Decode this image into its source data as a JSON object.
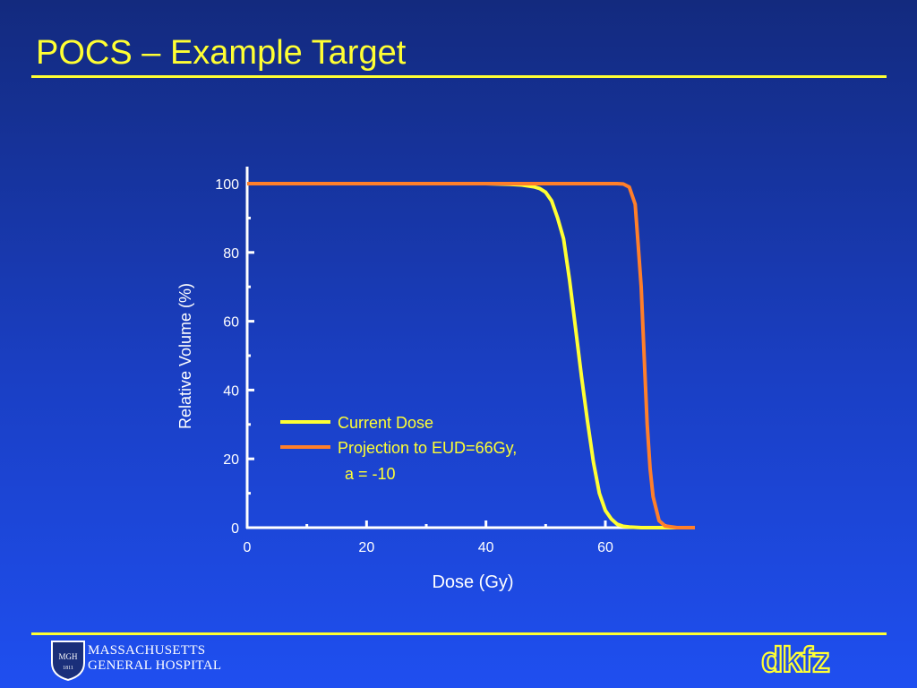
{
  "slide": {
    "title": "POCS – Example Target"
  },
  "footer": {
    "hospital_line1": "MASSACHUSETTS",
    "hospital_line2": "GENERAL HOSPITAL",
    "seal_text": "MGH",
    "seal_year": "1811",
    "partner_logo_text": "dkfz"
  },
  "colors": {
    "background": "#1a3fc4",
    "accent": "#ffff33",
    "series_current": "#ffff33",
    "series_projection": "#ff7f2a",
    "axis": "#ffffff"
  },
  "chart_data": {
    "type": "line",
    "title": "",
    "xlabel": "Dose (Gy)",
    "ylabel": "Relative Volume (%)",
    "xlim": [
      0,
      75
    ],
    "ylim": [
      0,
      100
    ],
    "xticks": [
      0,
      20,
      40,
      60
    ],
    "yticks": [
      0,
      20,
      40,
      60,
      80,
      100
    ],
    "grid": false,
    "legend": "center",
    "series": [
      {
        "name": "Current Dose",
        "color": "#ffff33",
        "x": [
          0,
          40,
          44,
          46,
          48,
          49,
          50,
          51,
          52,
          53,
          54,
          55,
          56,
          57,
          58,
          59,
          60,
          61,
          62,
          63,
          64,
          66,
          70,
          75
        ],
        "y": [
          100,
          100,
          99.8,
          99.6,
          99.1,
          98.6,
          97.5,
          95,
          90,
          84,
          72,
          58,
          44,
          31,
          19,
          10,
          5,
          2.5,
          1,
          0.4,
          0.2,
          0,
          0,
          0
        ]
      },
      {
        "name": "Projection to EUD=66Gy,",
        "legend_line2": "a = -10",
        "color": "#ff7f2a",
        "x": [
          0,
          62,
          63,
          64,
          65,
          65.5,
          66,
          66.5,
          67,
          67.5,
          68,
          69,
          70,
          72,
          75
        ],
        "y": [
          100,
          100,
          99.9,
          99,
          94,
          82,
          70,
          50,
          30,
          17,
          9,
          2,
          0.5,
          0,
          0
        ]
      }
    ]
  }
}
